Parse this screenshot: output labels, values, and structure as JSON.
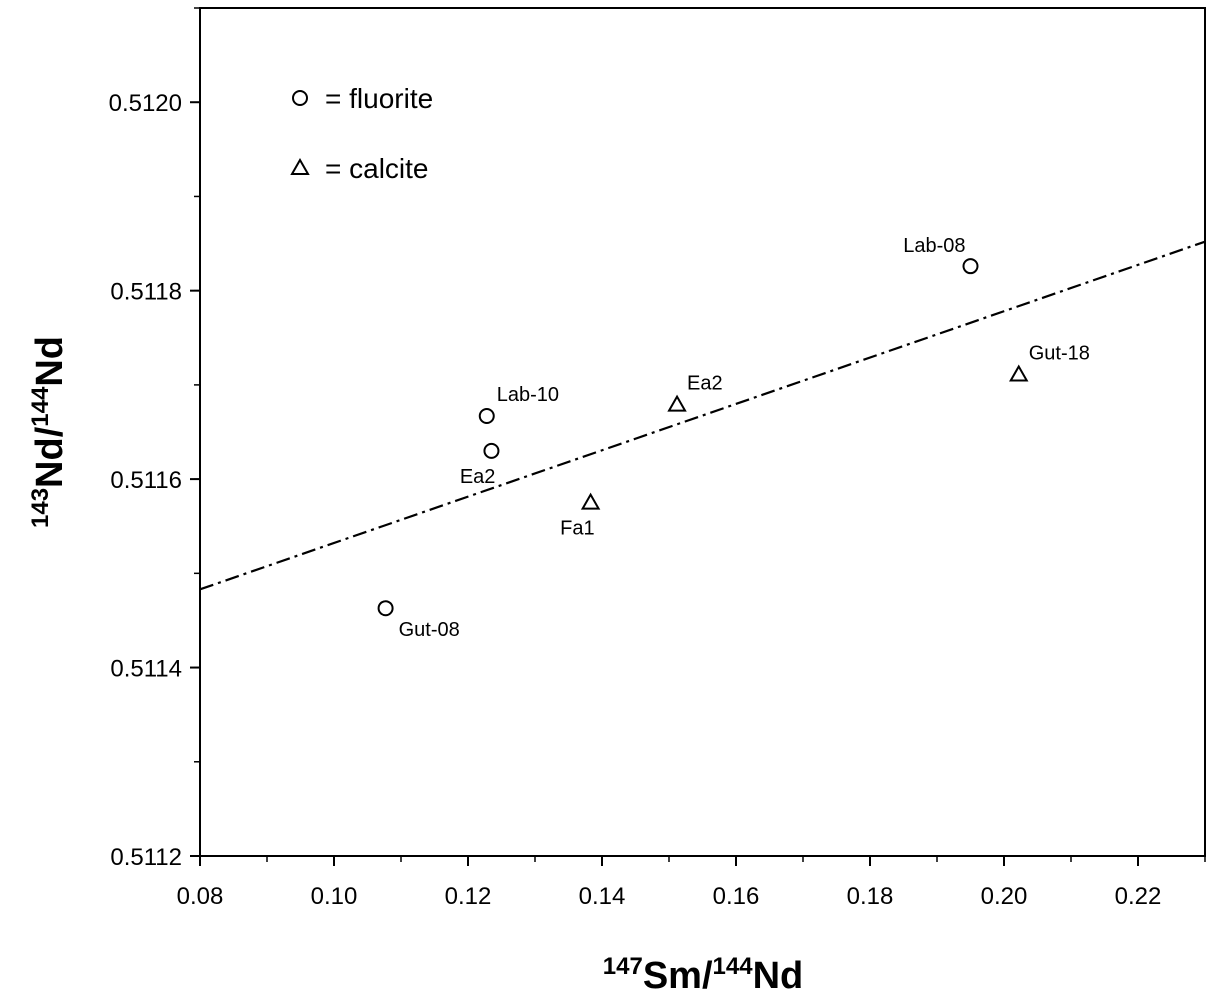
{
  "chart_data": {
    "type": "scatter",
    "xlabel": {
      "sup1": "147",
      "base1": "Sm/",
      "sup2": "144",
      "base2": "Nd"
    },
    "ylabel": {
      "sup1": "143",
      "base1": "Nd/",
      "sup2": "144",
      "base2": "Nd"
    },
    "xlim": [
      0.08,
      0.23
    ],
    "ylim": [
      0.5112,
      0.5121
    ],
    "x_ticks": [
      0.08,
      0.1,
      0.12,
      0.14,
      0.16,
      0.18,
      0.2,
      0.22
    ],
    "x_tick_labels": [
      "0.08",
      "0.10",
      "0.12",
      "0.14",
      "0.16",
      "0.18",
      "0.20",
      "0.22"
    ],
    "x_minor_step": 0.01,
    "y_ticks": [
      0.5112,
      0.5114,
      0.5116,
      0.5118,
      0.512
    ],
    "y_tick_labels": [
      "0.5112",
      "0.5114",
      "0.5116",
      "0.5118",
      "0.5120"
    ],
    "y_minor_step": 0.0001,
    "grid": false,
    "legend": {
      "position": "top-left",
      "entries": [
        {
          "marker": "circle",
          "label": "= fluorite"
        },
        {
          "marker": "triangle",
          "label": "= calcite"
        }
      ]
    },
    "series": [
      {
        "marker": "circle",
        "points": [
          {
            "x": 0.1077,
            "y": 0.511463,
            "label": "Gut-08",
            "label_pos": "below-right"
          },
          {
            "x": 0.1228,
            "y": 0.511667,
            "label": "Lab-10",
            "label_pos": "above-right"
          },
          {
            "x": 0.1235,
            "y": 0.51163,
            "label": "Ea2",
            "label_pos": "below-left"
          },
          {
            "x": 0.195,
            "y": 0.511826,
            "label": "Lab-08",
            "label_pos": "above-left"
          }
        ]
      },
      {
        "marker": "triangle",
        "points": [
          {
            "x": 0.1383,
            "y": 0.511575,
            "label": "Fa1",
            "label_pos": "below-left"
          },
          {
            "x": 0.1512,
            "y": 0.511679,
            "label": "Ea2",
            "label_pos": "above-right"
          },
          {
            "x": 0.2022,
            "y": 0.511711,
            "label": "Gut-18",
            "label_pos": "above-right"
          }
        ]
      }
    ],
    "fit_line": {
      "style": "dash-dot",
      "x": [
        0.08,
        0.23
      ],
      "y": [
        0.511483,
        0.511852
      ]
    }
  }
}
